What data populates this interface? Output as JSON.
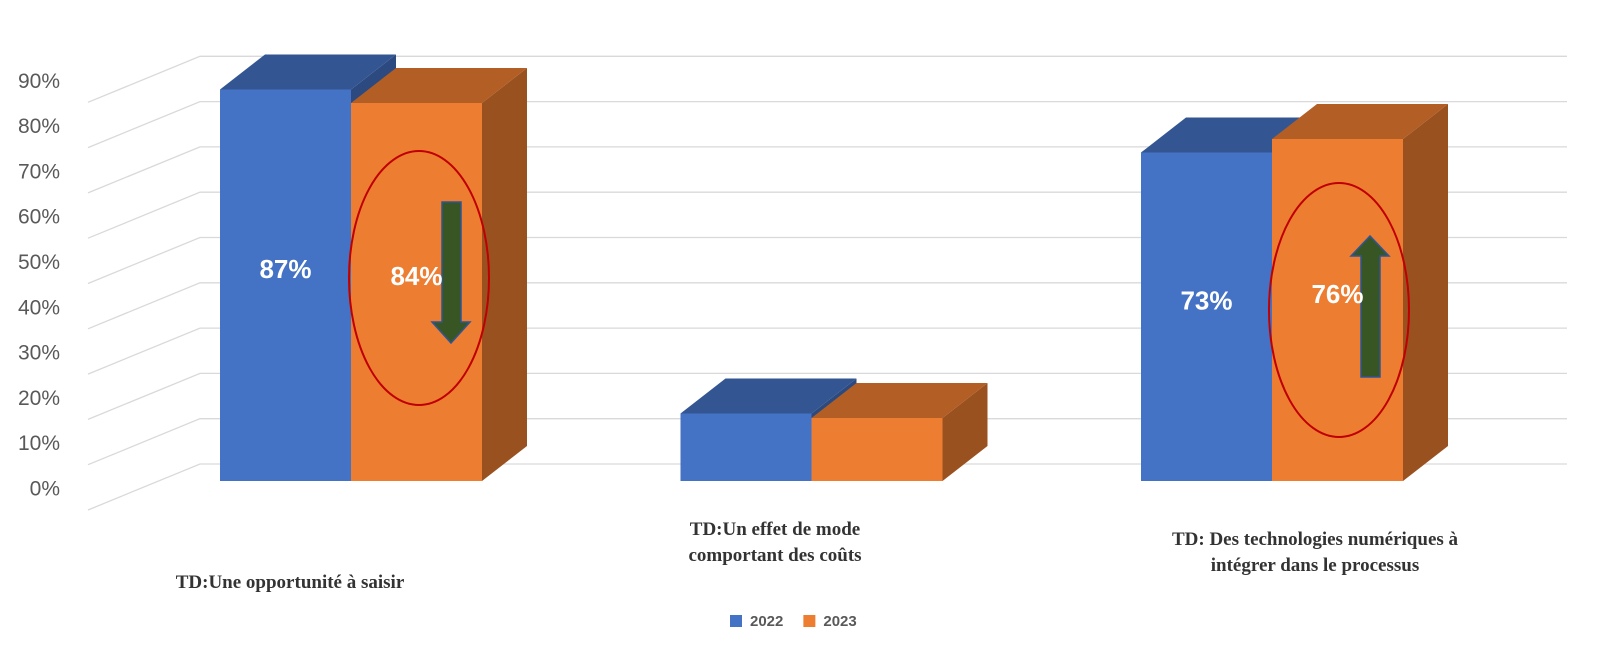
{
  "chart_data": {
    "type": "bar3d",
    "categories": [
      "TD:Une opportunité à saisir",
      "TD:Un effet de mode\ncomportant des coûts",
      "TD: Des technologies  numériques à\nintégrer dans  le processus"
    ],
    "series": [
      {
        "name": "2022",
        "color": "#4472c4",
        "values": [
          87,
          15,
          73
        ],
        "value_labels": [
          "87%",
          null,
          "73%"
        ]
      },
      {
        "name": "2023",
        "color": "#ed7d31",
        "values": [
          84,
          14,
          76
        ],
        "value_labels": [
          "84%",
          null,
          "76%"
        ]
      }
    ],
    "ylim": [
      0,
      100
    ],
    "yticks": [
      {
        "value": 0,
        "label": "0%"
      },
      {
        "value": 10,
        "label": "10%"
      },
      {
        "value": 20,
        "label": "20%"
      },
      {
        "value": 30,
        "label": "30%"
      },
      {
        "value": 40,
        "label": "40%"
      },
      {
        "value": 50,
        "label": "50%"
      },
      {
        "value": 60,
        "label": "60%"
      },
      {
        "value": 70,
        "label": "70%"
      },
      {
        "value": 80,
        "label": "80%"
      },
      {
        "value": 90,
        "label": "90%"
      }
    ],
    "grid": true,
    "legend": "bottom"
  }
}
